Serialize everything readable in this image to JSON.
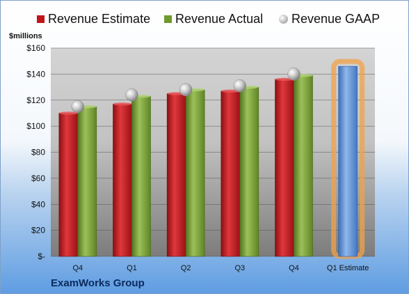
{
  "chart_data": {
    "type": "bar",
    "ylabel": "$millions",
    "categories": [
      "Q4",
      "Q1",
      "Q2",
      "Q3",
      "Q4",
      "Q1 Estimate"
    ],
    "ylim": [
      0,
      160
    ],
    "yticks": [
      "$-",
      "$20",
      "$40",
      "$60",
      "$80",
      "$100",
      "$120",
      "$140",
      "$160"
    ],
    "grid": true,
    "legend_position": "top",
    "series": [
      {
        "name": "Revenue Estimate",
        "type": "bar",
        "color": "#c0161b",
        "values": [
          110,
          117,
          125,
          127,
          136,
          null
        ]
      },
      {
        "name": "Revenue Actual",
        "type": "bar",
        "color": "#6f9a2c",
        "values": [
          115,
          123,
          128,
          130,
          139,
          null
        ]
      },
      {
        "name": "Revenue GAAP",
        "type": "marker",
        "color": "#b5b5b5",
        "values": [
          115,
          124,
          128,
          131,
          140,
          null
        ]
      },
      {
        "name": "",
        "type": "bar",
        "color": "#5b8fd4",
        "highlight": true,
        "values": [
          null,
          null,
          null,
          null,
          null,
          146
        ]
      }
    ]
  },
  "footer": {
    "company": "ExamWorks Group"
  }
}
